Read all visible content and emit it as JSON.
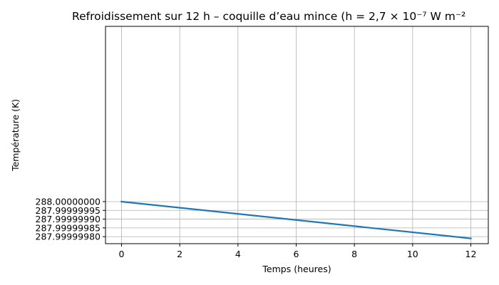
{
  "chart_data": {
    "type": "line",
    "title": "Refroidissement sur 12 h – coquille d’eau mince (h = 2,7 × 10⁻⁷ W m⁻²",
    "xlabel": "Temps (heures)",
    "ylabel": "Température (K)",
    "xlim": [
      -0.55,
      12.6
    ],
    "ylim": [
      287.99999976,
      288.000001
    ],
    "xticks": [
      0,
      2,
      4,
      6,
      8,
      10,
      12
    ],
    "xtick_labels": [
      "0",
      "2",
      "4",
      "6",
      "8",
      "10",
      "12"
    ],
    "yticks": [
      288.0,
      287.99999995,
      287.9999999,
      287.99999985,
      287.9999998
    ],
    "ytick_labels": [
      "288.00000000",
      "287.99999995",
      "287.99999990",
      "287.99999985",
      "287.99999980"
    ],
    "grid": true,
    "series": [
      {
        "color": "#1f77b4",
        "x": [
          0,
          12
        ],
        "y": [
          288.0,
          287.99999979
        ]
      }
    ]
  }
}
